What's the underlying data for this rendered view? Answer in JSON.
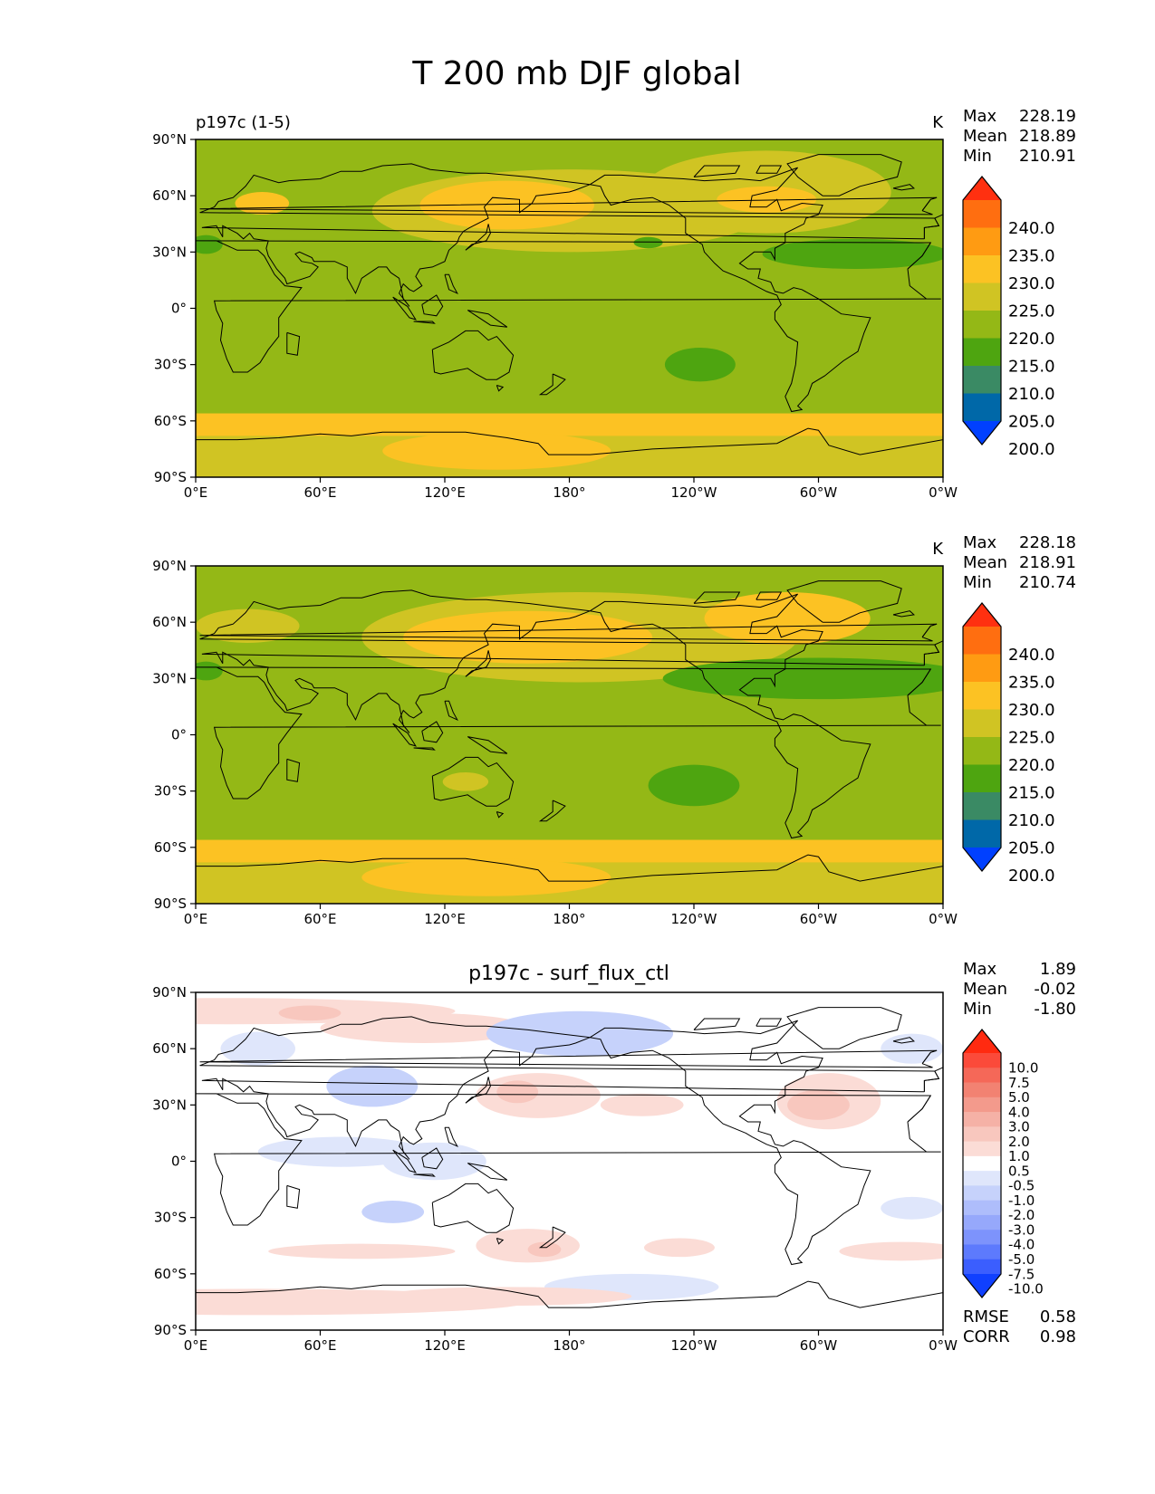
{
  "figure": {
    "title": "T 200 mb DJF global"
  },
  "ticks": {
    "lat": [
      "90°N",
      "60°N",
      "30°N",
      "0°",
      "30°S",
      "60°S",
      "90°S"
    ],
    "lon": [
      "0°E",
      "60°E",
      "120°E",
      "180°",
      "120°W",
      "60°W",
      "0°W"
    ]
  },
  "panels": [
    {
      "title_left": "p197c (1-5)",
      "title_center": "",
      "units": "K",
      "stats": [
        {
          "label": "Max",
          "value": "228.19"
        },
        {
          "label": "Mean",
          "value": "218.89"
        },
        {
          "label": "Min",
          "value": "210.91"
        }
      ],
      "colorbar": {
        "labels": [
          "240.0",
          "235.0",
          "230.0",
          "225.0",
          "220.0",
          "215.0",
          "210.0",
          "205.0",
          "200.0"
        ],
        "colors": [
          "#ff3010",
          "#ff6e10",
          "#ff9b12",
          "#fcc223",
          "#d0c423",
          "#94b816",
          "#4ea510",
          "#3a8a64",
          "#0068a8",
          "#0040ff"
        ]
      }
    },
    {
      "title_left": "",
      "title_center": "",
      "units": "K",
      "stats": [
        {
          "label": "Max",
          "value": "228.18"
        },
        {
          "label": "Mean",
          "value": "218.91"
        },
        {
          "label": "Min",
          "value": "210.74"
        }
      ],
      "colorbar": {
        "labels": [
          "240.0",
          "235.0",
          "230.0",
          "225.0",
          "220.0",
          "215.0",
          "210.0",
          "205.0",
          "200.0"
        ],
        "colors": [
          "#ff3010",
          "#ff6e10",
          "#ff9b12",
          "#fcc223",
          "#d0c423",
          "#94b816",
          "#4ea510",
          "#3a8a64",
          "#0068a8",
          "#0040ff"
        ]
      }
    },
    {
      "title_left": "",
      "title_center": "p197c - surf_flux_ctl",
      "units": "",
      "stats": [
        {
          "label": "Max",
          "value": "1.89"
        },
        {
          "label": "Mean",
          "value": "-0.02"
        },
        {
          "label": "Min",
          "value": "-1.80"
        }
      ],
      "colorbar": {
        "labels": [
          "10.0",
          "7.5",
          "5.0",
          "4.0",
          "3.0",
          "2.0",
          "1.0",
          "0.5",
          "-0.5",
          "-1.0",
          "-2.0",
          "-3.0",
          "-4.0",
          "-5.0",
          "-7.5",
          "-10.0"
        ],
        "colors": [
          "#ff2a10",
          "#fb4a3a",
          "#f56858",
          "#f28272",
          "#f39a8c",
          "#f5b1a6",
          "#f8c7be",
          "#fbdcd6",
          "#ffffff",
          "#dfe6fb",
          "#c6d2fb",
          "#aebdfb",
          "#96a8fb",
          "#7d93fc",
          "#5d7afd",
          "#3b5efe",
          "#1040ff"
        ]
      },
      "bottom_stats": [
        {
          "label": "RMSE",
          "value": "0.58"
        },
        {
          "label": "CORR",
          "value": "0.98"
        }
      ]
    }
  ],
  "chart_data": [
    {
      "type": "heatmap",
      "title": "p197c (1-5)",
      "units": "K",
      "xlim": [
        0,
        360
      ],
      "ylim": [
        -90,
        90
      ],
      "stats": {
        "max": 228.19,
        "mean": 218.89,
        "min": 210.91
      },
      "levels": [
        200,
        205,
        210,
        215,
        220,
        225,
        230,
        235,
        240
      ],
      "background_value": 217.5,
      "regions": [
        {
          "lon": 0,
          "lat": -74,
          "rlon": 360,
          "rlat": 16,
          "value": 222.5
        },
        {
          "lon": 0,
          "lat": -62,
          "rlon": 360,
          "rlat": 6,
          "value": 227.5
        },
        {
          "lon": 145,
          "lat": -76,
          "rlon": 55,
          "rlat": 10,
          "value": 227.5
        },
        {
          "lon": 180,
          "lat": 52,
          "rlon": 95,
          "rlat": 22,
          "value": 222.5
        },
        {
          "lon": 150,
          "lat": 55,
          "rlon": 42,
          "rlat": 13,
          "value": 227.5
        },
        {
          "lon": 275,
          "lat": 62,
          "rlon": 60,
          "rlat": 22,
          "value": 222.5
        },
        {
          "lon": 275,
          "lat": 58,
          "rlon": 24,
          "rlat": 7,
          "value": 227.5
        },
        {
          "lon": 32,
          "lat": 56,
          "rlon": 13,
          "rlat": 6,
          "value": 227.5
        },
        {
          "lon": 318,
          "lat": 29,
          "rlon": 45,
          "rlat": 8,
          "value": 212.5
        },
        {
          "lon": 5,
          "lat": 34,
          "rlon": 8,
          "rlat": 5,
          "value": 212.5
        },
        {
          "lon": 218,
          "lat": 35,
          "rlon": 7,
          "rlat": 3,
          "value": 212.5
        },
        {
          "lon": 243,
          "lat": -30,
          "rlon": 17,
          "rlat": 9,
          "value": 212.5
        }
      ]
    },
    {
      "type": "heatmap",
      "title": "",
      "units": "K",
      "xlim": [
        0,
        360
      ],
      "ylim": [
        -90,
        90
      ],
      "stats": {
        "max": 228.18,
        "mean": 218.91,
        "min": 210.74
      },
      "levels": [
        200,
        205,
        210,
        215,
        220,
        225,
        230,
        235,
        240
      ],
      "background_value": 217.5,
      "regions": [
        {
          "lon": 0,
          "lat": -74,
          "rlon": 360,
          "rlat": 16,
          "value": 222.5
        },
        {
          "lon": 0,
          "lat": -62,
          "rlon": 360,
          "rlat": 6,
          "value": 227.5
        },
        {
          "lon": 140,
          "lat": -76,
          "rlon": 60,
          "rlat": 10,
          "value": 227.5
        },
        {
          "lon": 185,
          "lat": 52,
          "rlon": 105,
          "rlat": 24,
          "value": 222.5
        },
        {
          "lon": 160,
          "lat": 52,
          "rlon": 60,
          "rlat": 14,
          "value": 227.5
        },
        {
          "lon": 285,
          "lat": 62,
          "rlon": 40,
          "rlat": 14,
          "value": 227.5
        },
        {
          "lon": 25,
          "lat": 58,
          "rlon": 25,
          "rlat": 9,
          "value": 222.5
        },
        {
          "lon": 130,
          "lat": -25,
          "rlon": 11,
          "rlat": 5,
          "value": 222.5
        },
        {
          "lon": 300,
          "lat": 30,
          "rlon": 75,
          "rlat": 11,
          "value": 212.5
        },
        {
          "lon": 5,
          "lat": 34,
          "rlon": 8,
          "rlat": 5,
          "value": 212.5
        },
        {
          "lon": 240,
          "lat": -27,
          "rlon": 22,
          "rlat": 11,
          "value": 212.5
        }
      ]
    },
    {
      "type": "heatmap",
      "title": "p197c - surf_flux_ctl",
      "units": "",
      "xlim": [
        0,
        360
      ],
      "ylim": [
        -90,
        90
      ],
      "stats": {
        "max": 1.89,
        "mean": -0.02,
        "min": -1.8,
        "rmse": 0.58,
        "corr": 0.98
      },
      "levels": [
        -10.0,
        -7.5,
        -5.0,
        -4.0,
        -3.0,
        -2.0,
        -1.0,
        -0.5,
        0.5,
        1.0,
        2.0,
        3.0,
        4.0,
        5.0,
        7.5,
        10.0
      ],
      "background_value": 0,
      "regions": [
        {
          "lon": 15,
          "lat": 80,
          "rlon": 110,
          "rlat": 7,
          "value": 0.75
        },
        {
          "lon": 110,
          "lat": 71,
          "rlon": 50,
          "rlat": 8,
          "value": 0.75
        },
        {
          "lon": 55,
          "lat": 79,
          "rlon": 15,
          "rlat": 4,
          "value": 1.5
        },
        {
          "lon": 85,
          "lat": 40,
          "rlon": 22,
          "rlat": 11,
          "value": -1.5
        },
        {
          "lon": 30,
          "lat": 60,
          "rlon": 18,
          "rlat": 9,
          "value": -0.75
        },
        {
          "lon": 185,
          "lat": 68,
          "rlon": 45,
          "rlat": 12,
          "value": -1.5
        },
        {
          "lon": 165,
          "lat": 35,
          "rlon": 30,
          "rlat": 12,
          "value": 0.75
        },
        {
          "lon": 155,
          "lat": 37,
          "rlon": 10,
          "rlat": 6,
          "value": 1.5
        },
        {
          "lon": 215,
          "lat": 30,
          "rlon": 20,
          "rlat": 6,
          "value": 0.75
        },
        {
          "lon": 305,
          "lat": 32,
          "rlon": 25,
          "rlat": 15,
          "value": 0.75
        },
        {
          "lon": 300,
          "lat": 30,
          "rlon": 15,
          "rlat": 8,
          "value": 1.5
        },
        {
          "lon": 345,
          "lat": 60,
          "rlon": 15,
          "rlat": 8,
          "value": -0.75
        },
        {
          "lon": 70,
          "lat": 5,
          "rlon": 40,
          "rlat": 8,
          "value": -0.75
        },
        {
          "lon": 115,
          "lat": 0,
          "rlon": 25,
          "rlat": 10,
          "value": -0.75
        },
        {
          "lon": 95,
          "lat": -27,
          "rlon": 15,
          "rlat": 6,
          "value": -1.5
        },
        {
          "lon": 160,
          "lat": -45,
          "rlon": 25,
          "rlat": 9,
          "value": 0.75
        },
        {
          "lon": 168,
          "lat": -47,
          "rlon": 8,
          "rlat": 4,
          "value": 1.5
        },
        {
          "lon": 80,
          "lat": -48,
          "rlon": 45,
          "rlat": 4,
          "value": 0.75
        },
        {
          "lon": 233,
          "lat": -46,
          "rlon": 17,
          "rlat": 5,
          "value": 0.75
        },
        {
          "lon": 210,
          "lat": -67,
          "rlon": 42,
          "rlat": 7,
          "value": -0.75
        },
        {
          "lon": 30,
          "lat": -75,
          "rlon": 130,
          "rlat": 7,
          "value": 0.75
        },
        {
          "lon": 150,
          "lat": -72,
          "rlon": 60,
          "rlat": 5,
          "value": 0.75
        },
        {
          "lon": 345,
          "lat": -25,
          "rlon": 15,
          "rlat": 6,
          "value": -0.75
        },
        {
          "lon": 340,
          "lat": -48,
          "rlon": 30,
          "rlat": 5,
          "value": 0.75
        }
      ]
    }
  ]
}
